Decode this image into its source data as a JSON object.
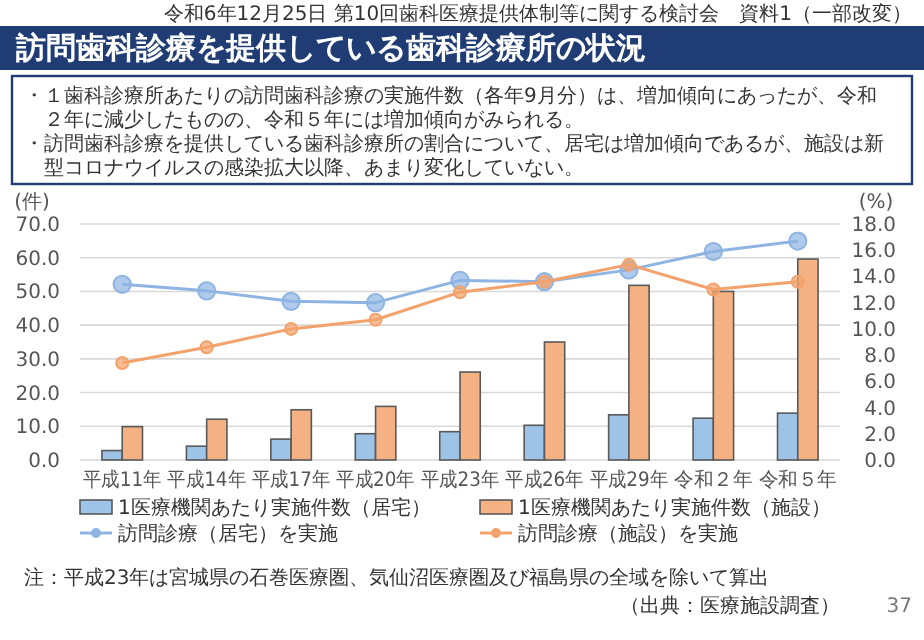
{
  "chart_data": {
    "type": "bar",
    "title": "訪問歯科診療を提供している歯科診療所の状況",
    "annotations": [
      "令和6年12月25日 第10回歯科医療提供体制等に関する検討会　資料1（一部改変）",
      "・１歯科診療所あたりの訪問歯科診療の実施件数（各年9月分）は、増加傾向にあったが、令和２年に減少したものの、令和５年には増加傾向がみられる。",
      "・訪問歯科診療を提供している歯科診療所の割合について、居宅は増加傾向であるが、施設は新型コロナウイルスの感染拡大以降、あまり変化していない。",
      "注：平成23年は宮城県の石巻医療圏、気仙沼医療圏及び福島県の全域を除いて算出",
      "（出典：医療施設調査）",
      "37"
    ],
    "categories": [
      "平成11年",
      "平成14年",
      "平成17年",
      "平成20年",
      "平成23年",
      "平成26年",
      "平成29年",
      "令和２年",
      "令和５年"
    ],
    "ylabel": "(件)",
    "y2label": "(%)",
    "ylim": [
      0,
      70
    ],
    "yticks": [
      {
        "value": 0,
        "label": "0.0"
      },
      {
        "value": 10,
        "label": "10.0"
      },
      {
        "value": 20,
        "label": "20.0"
      },
      {
        "value": 30,
        "label": "30.0"
      },
      {
        "value": 40,
        "label": "40.0"
      },
      {
        "value": 50,
        "label": "50.0"
      },
      {
        "value": 60,
        "label": "60.0"
      },
      {
        "value": 70,
        "label": "70.0"
      }
    ],
    "y2lim": [
      0,
      18
    ],
    "y2ticks": [
      {
        "value": 0,
        "label": "0.0"
      },
      {
        "value": 2,
        "label": "2.0"
      },
      {
        "value": 4,
        "label": "4.0"
      },
      {
        "value": 6,
        "label": "6.0"
      },
      {
        "value": 8,
        "label": "8.0"
      },
      {
        "value": 10,
        "label": "10.0"
      },
      {
        "value": 12,
        "label": "12.0"
      },
      {
        "value": 14,
        "label": "14.0"
      },
      {
        "value": 16,
        "label": "16.0"
      },
      {
        "value": 18,
        "label": "18.0"
      }
    ],
    "grid": "y",
    "legend": "bottom",
    "series": [
      {
        "name": "1医療機関あたり実施件数（居宅）",
        "color": "#9dc3e6",
        "values": [
          2.8,
          4.1,
          6.2,
          7.8,
          8.4,
          10.3,
          13.4,
          12.4,
          13.9
        ]
      },
      {
        "name": "1医療機関あたり実施件数（施設）",
        "color": "#f4b183",
        "values": [
          9.9,
          12.1,
          14.9,
          15.9,
          26.1,
          35.0,
          51.8,
          50.0,
          59.6
        ]
      },
      {
        "name": "訪問診療（居宅）を実施",
        "type": "line",
        "axis": "y2",
        "marker": "circle",
        "color": "#8db4e2",
        "values": [
          13.4,
          12.9,
          12.1,
          12.0,
          13.7,
          13.6,
          14.5,
          15.9,
          16.7
        ]
      },
      {
        "name": "訪問診療（施設）を実施",
        "type": "line",
        "axis": "y2",
        "marker": "circle",
        "color": "#f4a26b",
        "values": [
          7.4,
          8.6,
          10.0,
          10.7,
          12.8,
          13.6,
          14.9,
          13.0,
          13.6
        ]
      }
    ]
  }
}
